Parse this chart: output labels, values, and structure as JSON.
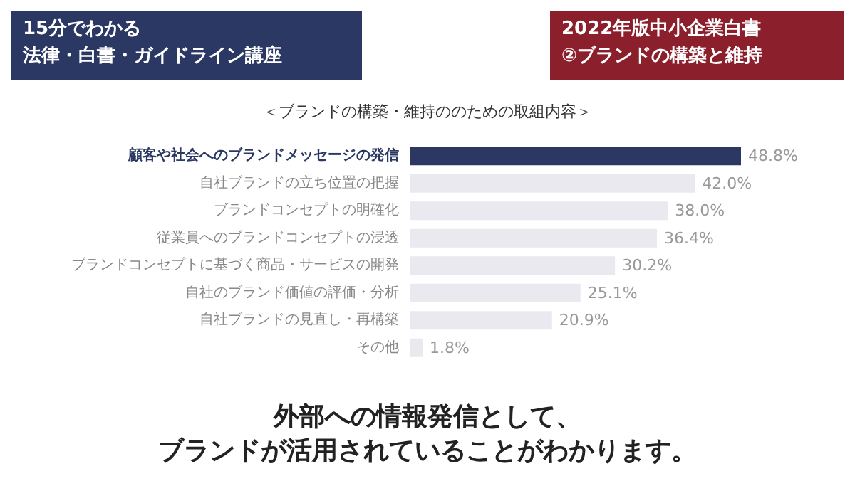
{
  "chart_data": {
    "type": "bar",
    "orientation": "horizontal",
    "title": "＜ブランドの構築・維持ののための取組内容＞",
    "categories": [
      "顧客や社会へのブランドメッセージの発信",
      "自社ブランドの立ち位置の把握",
      "ブランドコンセプトの明確化",
      "従業員へのブランドコンセプトの浸透",
      "ブランドコンセプトに基づく商品・サービスの開発",
      "自社のブランド価値の評価・分析",
      "自社ブランドの見直し・再構築",
      "その他"
    ],
    "values": [
      48.8,
      42.0,
      38.0,
      36.4,
      30.2,
      25.1,
      20.9,
      1.8
    ],
    "value_labels": [
      "48.8%",
      "42.0%",
      "38.0%",
      "36.4%",
      "30.2%",
      "25.1%",
      "20.9%",
      "1.8%"
    ],
    "colors": [
      "#2b3864",
      "#e9e9ef",
      "#e9e9ef",
      "#e9e9ef",
      "#e9e9ef",
      "#e9e9ef",
      "#e9e9ef",
      "#e9e9ef"
    ],
    "annotations": [
      "15分でわかる",
      "法律・白書・ガイドライン講座",
      "2022年版中小企業白書",
      "②ブランドの構築と維持",
      "外部への情報発信として、",
      "ブランドが活用されていることがわかります。"
    ]
  }
}
